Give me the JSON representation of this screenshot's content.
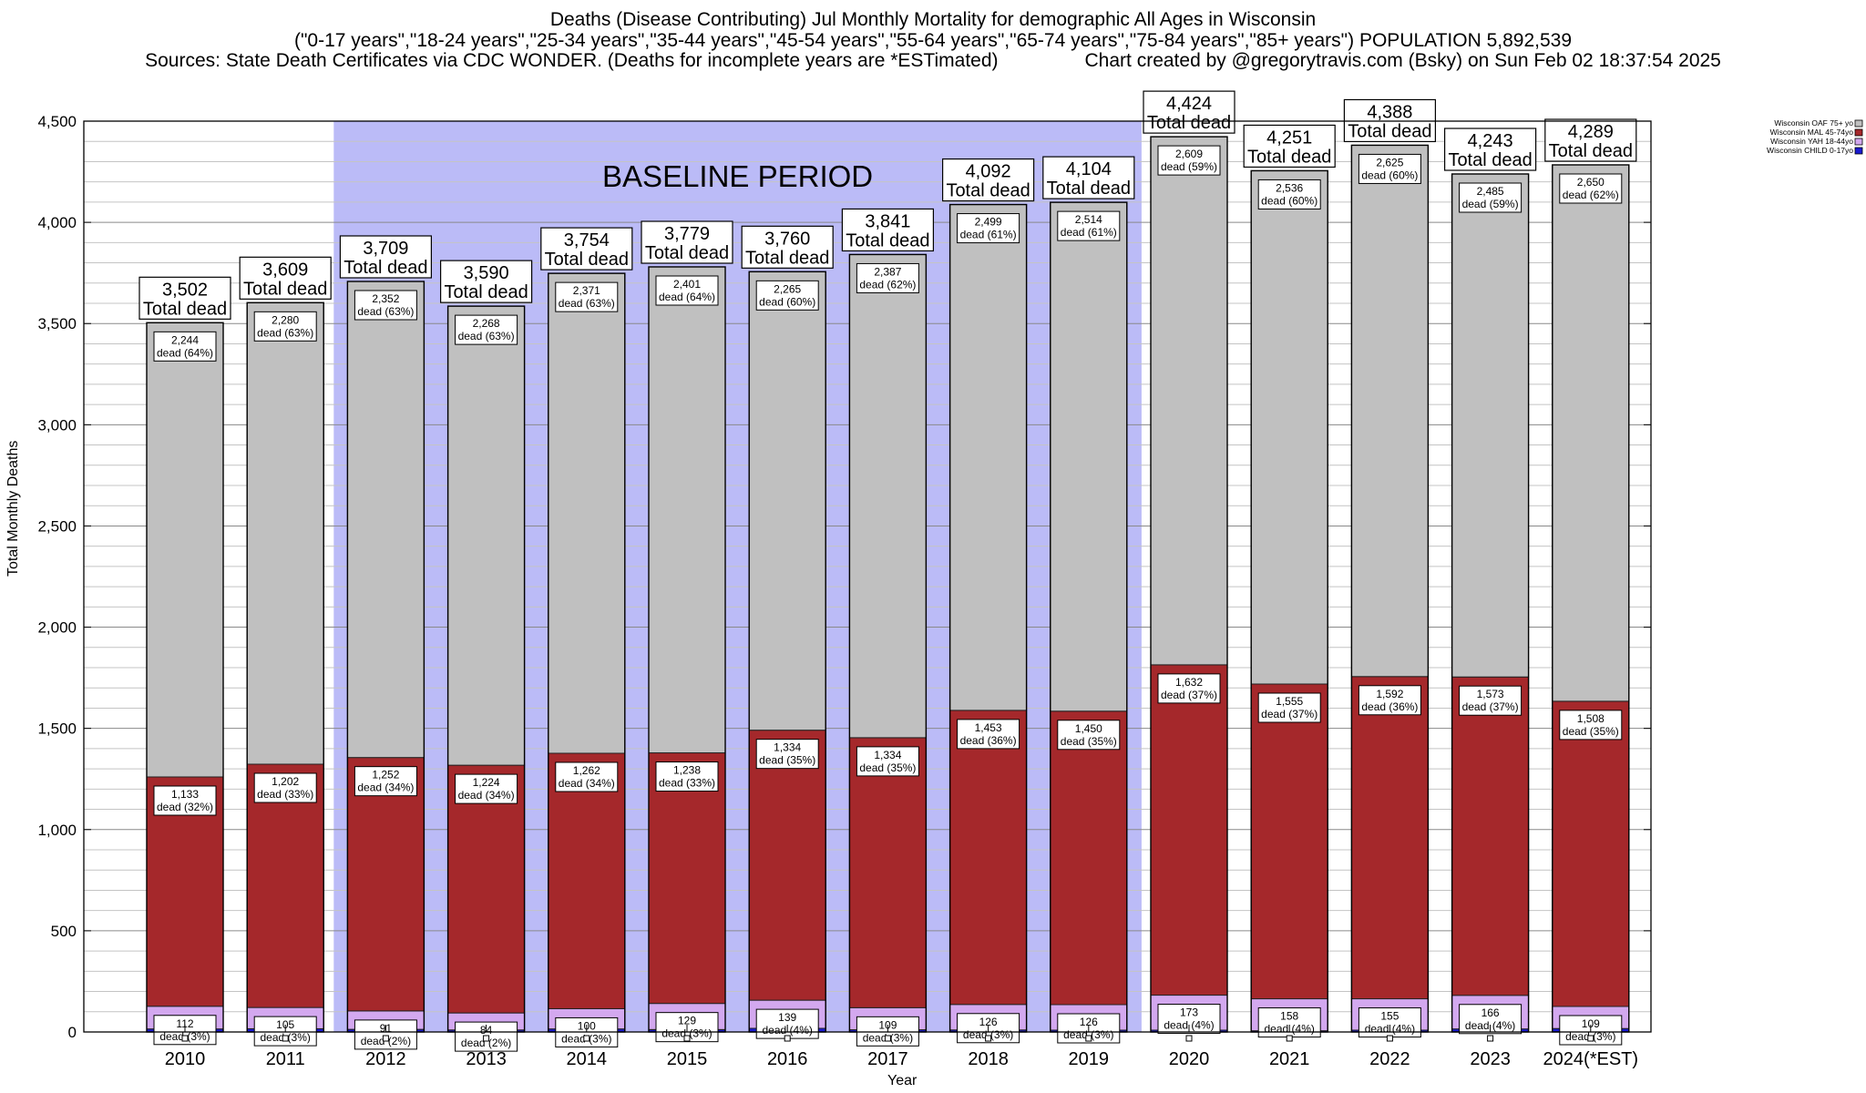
{
  "header": {
    "title": "Deaths (Disease Contributing) Jul Monthly Mortality for demographic All Ages in Wisconsin",
    "line2": "(\"0-17 years\",\"18-24 years\",\"25-34 years\",\"35-44 years\",\"45-54 years\",\"55-64 years\",\"65-74 years\",\"75-84 years\",\"85+ years\") POPULATION 5,892,539",
    "sources": "Sources: State Death Certificates via CDC WONDER. (Deaths for incomplete years are *ESTimated)",
    "credit": "Chart created by @gregorytravis.com (Bsky) on Sun Feb 02 18:37:54 2025"
  },
  "chart_data": {
    "type": "bar",
    "stacked": true,
    "xlabel": "Year",
    "ylabel": "Total Monthly Deaths",
    "ylim": [
      0,
      4500
    ],
    "yticks": [
      0,
      500,
      1000,
      1500,
      2000,
      2500,
      3000,
      3500,
      4000,
      4500
    ],
    "ytick_labels": [
      "0",
      "500",
      "1,000",
      "1,500",
      "2,000",
      "2,500",
      "3,000",
      "3,500",
      "4,000",
      "4,500"
    ],
    "grid": true,
    "legend_position": "top-right",
    "categories": [
      "2010",
      "2011",
      "2012",
      "2013",
      "2014",
      "2015",
      "2016",
      "2017",
      "2018",
      "2019",
      "2020",
      "2021",
      "2022",
      "2023",
      "2024(*EST)"
    ],
    "baseline_period": {
      "label": "BASELINE PERIOD",
      "from": "2012",
      "to": "2019",
      "color": "#bbbbf7"
    },
    "series": [
      {
        "name": "Wisconsin CHILD 0-17yo",
        "color": "#1a1ad1",
        "values": [
          15,
          16,
          13,
          10,
          15,
          12,
          18,
          11,
          10,
          9,
          9,
          6,
          9,
          15,
          17
        ],
        "labels": [
          "",
          "",
          "",
          "",
          "",
          "",
          "",
          "",
          "",
          "",
          "",
          "",
          "",
          "",
          ""
        ]
      },
      {
        "name": "Wisconsin YAH 18-44yo",
        "color": "#d3a8ef",
        "values": [
          112,
          105,
          91,
          84,
          100,
          129,
          139,
          109,
          126,
          126,
          173,
          158,
          155,
          166,
          109
        ],
        "labels": [
          "112",
          "105",
          "91",
          "84",
          "100",
          "129",
          "139",
          "109",
          "126",
          "126",
          "173",
          "158",
          "155",
          "166",
          "109"
        ],
        "pcts": [
          "(3%)",
          "(3%)",
          "(2%)",
          "(2%)",
          "(3%)",
          "(3%)",
          "(4%)",
          "(3%)",
          "(3%)",
          "(3%)",
          "(4%)",
          "(4%)",
          "(4%)",
          "(4%)",
          "(3%)"
        ]
      },
      {
        "name": "Wisconsin MAL 45-74yo",
        "color": "#a5282b",
        "values": [
          1133,
          1202,
          1252,
          1224,
          1262,
          1238,
          1334,
          1334,
          1453,
          1450,
          1632,
          1555,
          1592,
          1573,
          1508
        ],
        "labels": [
          "1,133",
          "1,202",
          "1,252",
          "1,224",
          "1,262",
          "1,238",
          "1,334",
          "1,334",
          "1,453",
          "1,450",
          "1,632",
          "1,555",
          "1,592",
          "1,573",
          "1,508"
        ],
        "pcts": [
          "(32%)",
          "(33%)",
          "(34%)",
          "(34%)",
          "(34%)",
          "(33%)",
          "(35%)",
          "(35%)",
          "(36%)",
          "(35%)",
          "(37%)",
          "(37%)",
          "(36%)",
          "(37%)",
          "(35%)"
        ]
      },
      {
        "name": "Wisconsin OAF 75+ yo",
        "color": "#c0c0c0",
        "values": [
          2244,
          2280,
          2352,
          2268,
          2371,
          2401,
          2265,
          2387,
          2499,
          2514,
          2609,
          2536,
          2625,
          2485,
          2650
        ],
        "labels": [
          "2,244",
          "2,280",
          "2,352",
          "2,268",
          "2,371",
          "2,401",
          "2,265",
          "2,387",
          "2,499",
          "2,514",
          "2,609",
          "2,536",
          "2,625",
          "2,485",
          "2,650"
        ],
        "pcts": [
          "(64%)",
          "(63%)",
          "(63%)",
          "(63%)",
          "(63%)",
          "(64%)",
          "(60%)",
          "(62%)",
          "(61%)",
          "(61%)",
          "(59%)",
          "(60%)",
          "(60%)",
          "(59%)",
          "(62%)"
        ]
      }
    ],
    "totals": [
      3502,
      3609,
      3709,
      3590,
      3754,
      3779,
      3760,
      3841,
      4092,
      4104,
      4424,
      4251,
      4388,
      4243,
      4289
    ],
    "total_labels": [
      "3,502",
      "3,609",
      "3,709",
      "3,590",
      "3,754",
      "3,779",
      "3,760",
      "3,841",
      "4,092",
      "4,104",
      "4,424",
      "4,251",
      "4,388",
      "4,243",
      "4,289"
    ],
    "total_suffix": "Total dead",
    "dead_word": "dead",
    "legend": [
      "Wisconsin OAF 75+ yo",
      "Wisconsin MAL 45-74yo",
      "Wisconsin YAH 18-44yo",
      "Wisconsin CHILD 0-17yo"
    ]
  }
}
